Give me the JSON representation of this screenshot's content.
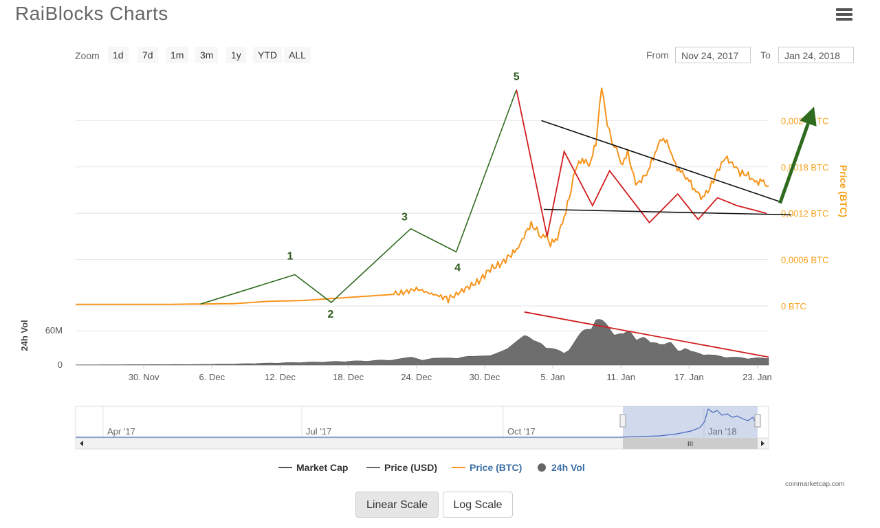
{
  "page": {
    "title": "RaiBlocks Charts",
    "zoom_label": "Zoom",
    "zoom_buttons": [
      "1d",
      "7d",
      "1m",
      "3m",
      "1y",
      "YTD",
      "ALL"
    ],
    "from_label": "From",
    "from_value": "Nov 24, 2017",
    "to_label": "To",
    "to_value": "Jan 24, 2018",
    "credit": "coinmarketcap.com",
    "linear_scale": "Linear Scale",
    "log_scale": "Log Scale",
    "menu_icon": "hamburger-menu-icon"
  },
  "legend": [
    {
      "label": "Market Cap",
      "color": "#555555",
      "kind": "line"
    },
    {
      "label": "Price (USD)",
      "color": "#666666",
      "kind": "line"
    },
    {
      "label": "Price (BTC)",
      "color": "#f7931a",
      "kind": "line",
      "text_color": "#3a6ea5"
    },
    {
      "label": "24h Vol",
      "color": "#666666",
      "kind": "dot",
      "text_color": "#3a6ea5"
    }
  ],
  "chart_data": {
    "type": "line",
    "ylabel": "Price (BTC)",
    "y_ticks": [
      "0 BTC",
      "0,0006 BTC",
      "0,0012 BTC",
      "0,0018 BTC",
      "0,0024 BTC"
    ],
    "y_tick_values": [
      0,
      0.0006,
      0.0012,
      0.0018,
      0.0024
    ],
    "ylim": [
      0,
      0.003
    ],
    "x_ticks": [
      "30. Nov",
      "6. Dec",
      "12. Dec",
      "18. Dec",
      "24. Dec",
      "30. Dec",
      "5. Jan",
      "11. Jan",
      "17. Jan",
      "23. Jan"
    ],
    "x_tick_days": [
      6,
      12,
      18,
      24,
      30,
      36,
      42,
      48,
      54,
      60
    ],
    "xlim_days": [
      0,
      61
    ],
    "series": [
      {
        "name": "Price (BTC)",
        "color": "#f7931a",
        "points": [
          [
            0,
            2e-05
          ],
          [
            4,
            2e-05
          ],
          [
            8,
            2e-05
          ],
          [
            11,
            2.5e-05
          ],
          [
            14,
            3e-05
          ],
          [
            17,
            6e-05
          ],
          [
            20,
            7e-05
          ],
          [
            23,
            0.0001
          ],
          [
            26,
            0.00013
          ],
          [
            28,
            0.00015
          ],
          [
            29,
            0.00018
          ],
          [
            30,
            0.00022
          ],
          [
            30.5,
            0.0002
          ],
          [
            31,
            0.00017
          ],
          [
            31.5,
            0.00015
          ],
          [
            32,
            0.00013
          ],
          [
            32.8,
            9e-05
          ],
          [
            33.5,
            0.00015
          ],
          [
            34.5,
            0.00024
          ],
          [
            35.5,
            0.00032
          ],
          [
            36.5,
            0.00048
          ],
          [
            37.5,
            0.00055
          ],
          [
            38.2,
            0.00065
          ],
          [
            38.8,
            0.00072
          ],
          [
            39.3,
            0.00085
          ],
          [
            39.8,
            0.001
          ],
          [
            40.1,
            0.00105
          ],
          [
            40.6,
            0.00098
          ],
          [
            41,
            0.0009
          ],
          [
            41.3,
            0.00093
          ],
          [
            41.8,
            0.0008
          ],
          [
            42.4,
            0.00088
          ],
          [
            43,
            0.00115
          ],
          [
            43.6,
            0.00148
          ],
          [
            44,
            0.00178
          ],
          [
            44.6,
            0.0019
          ],
          [
            45.2,
            0.00182
          ],
          [
            45.8,
            0.0021
          ],
          [
            46.3,
            0.00285
          ],
          [
            46.8,
            0.00235
          ],
          [
            47.2,
            0.00212
          ],
          [
            47.6,
            0.00205
          ],
          [
            48,
            0.00182
          ],
          [
            48.6,
            0.00198
          ],
          [
            49.3,
            0.00158
          ],
          [
            49.8,
            0.00162
          ],
          [
            50.4,
            0.00175
          ],
          [
            51,
            0.00198
          ],
          [
            51.6,
            0.00218
          ],
          [
            52.2,
            0.00208
          ],
          [
            52.8,
            0.00182
          ],
          [
            53.4,
            0.00172
          ],
          [
            54,
            0.00162
          ],
          [
            54.6,
            0.00148
          ],
          [
            55.2,
            0.0014
          ],
          [
            55.8,
            0.00152
          ],
          [
            56.5,
            0.00175
          ],
          [
            57.2,
            0.00192
          ],
          [
            57.8,
            0.00185
          ],
          [
            58.5,
            0.00172
          ],
          [
            59.2,
            0.0017
          ],
          [
            59.8,
            0.0016
          ],
          [
            60.4,
            0.00162
          ],
          [
            61,
            0.00155
          ]
        ]
      }
    ],
    "volume": {
      "ylabel": "24h Vol",
      "y_ticks": [
        "0",
        "60M"
      ],
      "y_tick_values": [
        0,
        60000000
      ],
      "ylim": [
        0,
        100000000
      ],
      "points": [
        [
          0,
          300000
        ],
        [
          6,
          800000
        ],
        [
          10,
          1000000
        ],
        [
          14,
          2000000
        ],
        [
          18,
          4000000
        ],
        [
          22,
          6000000
        ],
        [
          26,
          8000000
        ],
        [
          28,
          10000000
        ],
        [
          29.5,
          14000000
        ],
        [
          30.5,
          10000000
        ],
        [
          31.5,
          12000000
        ],
        [
          33,
          13000000
        ],
        [
          35,
          16000000
        ],
        [
          36.5,
          20000000
        ],
        [
          38,
          30000000
        ],
        [
          39.5,
          52000000
        ],
        [
          40.3,
          50000000
        ],
        [
          41,
          40000000
        ],
        [
          42,
          30000000
        ],
        [
          43,
          22000000
        ],
        [
          43.8,
          40000000
        ],
        [
          44.6,
          60000000
        ],
        [
          45.2,
          72000000
        ],
        [
          45.8,
          85000000
        ],
        [
          46.4,
          78000000
        ],
        [
          47,
          70000000
        ],
        [
          47.6,
          60000000
        ],
        [
          48.2,
          55000000
        ],
        [
          48.8,
          62000000
        ],
        [
          49.4,
          52000000
        ],
        [
          50,
          50000000
        ],
        [
          50.6,
          40000000
        ],
        [
          51.2,
          45000000
        ],
        [
          51.8,
          38000000
        ],
        [
          52.4,
          40000000
        ],
        [
          53,
          28000000
        ],
        [
          53.6,
          32000000
        ],
        [
          54.2,
          24000000
        ],
        [
          55,
          22000000
        ],
        [
          56,
          18000000
        ],
        [
          57,
          16000000
        ],
        [
          58,
          14000000
        ],
        [
          59,
          13000000
        ],
        [
          60,
          13000000
        ],
        [
          61,
          12000000
        ]
      ]
    },
    "navigator": {
      "ticks": [
        "Apr '17",
        "Jul '17",
        "Oct '17",
        "Jan '18"
      ]
    },
    "annotations": {
      "wave_labels": [
        "1",
        "2",
        "3",
        "4",
        "5"
      ],
      "wave_points": [
        [
          11,
          2.5e-05
        ],
        [
          19.3,
          0.000405
        ],
        [
          22.5,
          4.5e-05
        ],
        [
          29.5,
          0.001
        ],
        [
          33.5,
          0.0007
        ],
        [
          38.8,
          0.0028
        ],
        [
          44.5,
          0.00205
        ],
        [
          48.3,
          0.00175
        ],
        [
          54.8,
          0.00152
        ],
        [
          58.6,
          0.00168
        ],
        [
          61,
          0.00115
        ]
      ],
      "flag_upper": [
        [
          41,
          0.0024
        ],
        [
          62,
          0.00135
        ]
      ],
      "flag_lower": [
        [
          41.2,
          0.00125
        ],
        [
          63,
          0.00118
        ]
      ],
      "breakout_arrow": [
        [
          62,
          0.00133
        ],
        [
          65,
          0.00258
        ]
      ],
      "volume_trend": [
        [
          39.5,
          93000000
        ],
        [
          61,
          14000000
        ]
      ]
    }
  }
}
